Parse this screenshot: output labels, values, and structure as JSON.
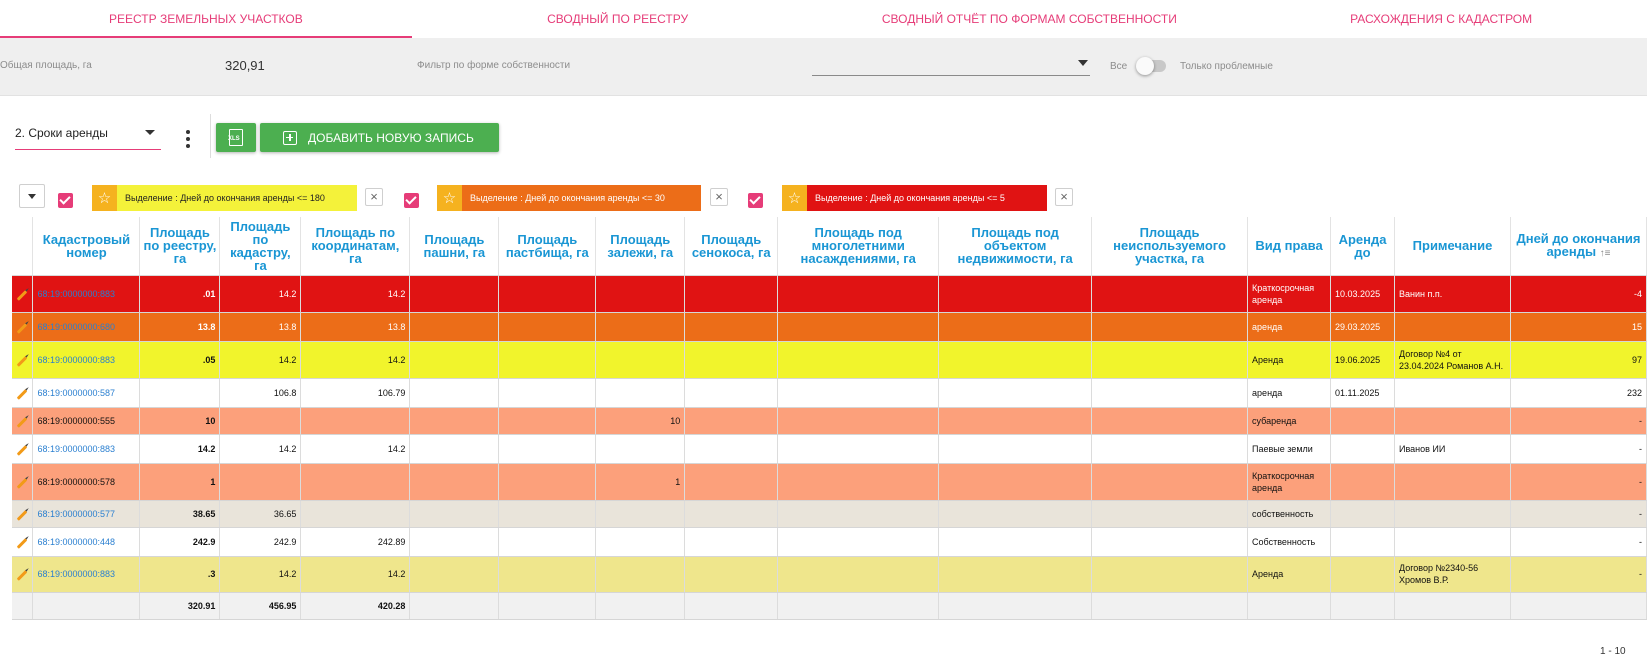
{
  "tabs": [
    {
      "label": "Реестр земельных участков",
      "active": true
    },
    {
      "label": "Сводный по реестру",
      "active": false
    },
    {
      "label": "Сводный отчёт по формам собственности",
      "active": false
    },
    {
      "label": "Расхождения с кадастром",
      "active": false
    }
  ],
  "summary": {
    "area_label": "Общая площадь, га",
    "area_value": "320,91",
    "filter_label": "Фильтр по форме собственности",
    "filter_value": "",
    "toggle_left": "Все",
    "toggle_right": "Только проблемные",
    "toggle_on": false
  },
  "toolbar": {
    "view_value": "2. Сроки аренды",
    "xls_label": "XLS",
    "add_label": "Добавить новую запись"
  },
  "rules": [
    {
      "text": "Выделение : Дней до окончания аренды <= 180",
      "color": "#f4f23a",
      "text_color": "#222222",
      "checked": true
    },
    {
      "text": "Выделение : Дней до окончания аренды <= 30",
      "color": "#ec6d18",
      "text_color": "#ffffff",
      "checked": true
    },
    {
      "text": "Выделение : Дней до окончания аренды <= 5",
      "color": "#e01313",
      "text_color": "#ffffff",
      "checked": true
    }
  ],
  "columns": [
    "Кадастровый номер",
    "Площадь по реестру, га",
    "Площадь по кадастру, га",
    "Площадь по координатам, га",
    "Площадь пашни, га",
    "Площадь пастбища, га",
    "Площадь залежи, га",
    "Площадь сенокоса, га",
    "Площадь под многолетними насаждениями, га",
    "Площадь под объектом недвижимости, га",
    "Площадь неиспользуемого участка, га",
    "Вид права",
    "Аренда до",
    "Примечание",
    "Дней до окончания аренды"
  ],
  "rows": [
    {
      "bg": "#e01313",
      "fg": "#ffffff",
      "cad_link": true,
      "cells": [
        "68:19:0000000:883",
        ".01",
        "14.2",
        "14.2",
        "",
        "",
        "",
        "",
        "",
        "",
        "",
        "Краткосрочная аренда",
        "10.03.2025",
        "Ванин п.п.",
        "-4"
      ]
    },
    {
      "bg": "#ec6d18",
      "fg": "#ffffff",
      "cad_link": true,
      "cells": [
        "68:19:0000000:680",
        "13.8",
        "13.8",
        "13.8",
        "",
        "",
        "",
        "",
        "",
        "",
        "",
        "аренда",
        "29.03.2025",
        "",
        "15"
      ]
    },
    {
      "bg": "#f1f42c",
      "fg": "#111111",
      "cad_link": true,
      "cells": [
        "68:19:0000000:883",
        ".05",
        "14.2",
        "14.2",
        "",
        "",
        "",
        "",
        "",
        "",
        "",
        "Аренда",
        "19.06.2025",
        "Договор №4 от 23.04.2024 Романов А.Н.",
        "97"
      ]
    },
    {
      "bg": "#ffffff",
      "fg": "#111111",
      "cad_link": true,
      "cells": [
        "68:19:0000000:587",
        "",
        "106.8",
        "106.79",
        "",
        "",
        "",
        "",
        "",
        "",
        "",
        "аренда",
        "01.11.2025",
        "",
        "232"
      ]
    },
    {
      "bg": "#fca07b",
      "fg": "#111111",
      "cad_link": false,
      "cells": [
        "68:19:0000000:555",
        "10",
        "",
        "",
        "",
        "",
        "10",
        "",
        "",
        "",
        "",
        "субаренда",
        "",
        "",
        "-"
      ]
    },
    {
      "bg": "#ffffff",
      "fg": "#111111",
      "cad_link": true,
      "cells": [
        "68:19:0000000:883",
        "14.2",
        "14.2",
        "14.2",
        "",
        "",
        "",
        "",
        "",
        "",
        "",
        "Паевые земли",
        "",
        "Иванов ИИ",
        "-"
      ]
    },
    {
      "bg": "#fca07b",
      "fg": "#111111",
      "cad_link": false,
      "cells": [
        "68:19:0000000:578",
        "1",
        "",
        "",
        "",
        "",
        "1",
        "",
        "",
        "",
        "",
        "Краткосрочная аренда",
        "",
        "",
        "-"
      ]
    },
    {
      "bg": "#e9e4da",
      "fg": "#111111",
      "cad_link": true,
      "cells": [
        "68:19:0000000:577",
        "38.65",
        "36.65",
        "",
        "",
        "",
        "",
        "",
        "",
        "",
        "",
        "собственность",
        "",
        "",
        "-"
      ]
    },
    {
      "bg": "#ffffff",
      "fg": "#111111",
      "cad_link": true,
      "cells": [
        "68:19:0000000:448",
        "242.9",
        "242.9",
        "242.89",
        "",
        "",
        "",
        "",
        "",
        "",
        "",
        "Собственность",
        "",
        "",
        "-"
      ]
    },
    {
      "bg": "#efe68c",
      "fg": "#111111",
      "cad_link": true,
      "cells": [
        "68:19:0000000:883",
        ".3",
        "14.2",
        "14.2",
        "",
        "",
        "",
        "",
        "",
        "",
        "",
        "Аренда",
        "",
        "Договор №2340-56 Хромов В.Р.",
        "-"
      ]
    }
  ],
  "totals": [
    "",
    "320.91",
    "456.95",
    "420.28",
    "",
    "",
    "",
    "",
    "",
    "",
    "",
    "",
    "",
    "",
    ""
  ],
  "pager": "1 - 10"
}
